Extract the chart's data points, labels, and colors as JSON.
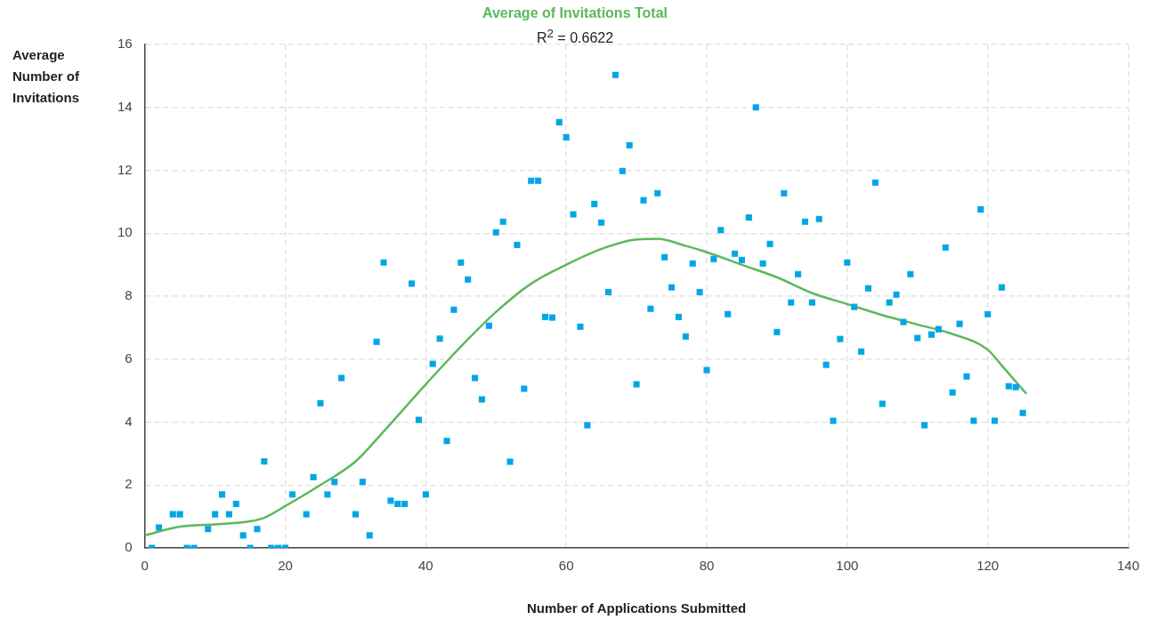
{
  "chart_data": {
    "type": "scatter",
    "title": "Average of Invitations Total",
    "subtitle": "R$^{2}$ = 0.6622",
    "xlabel": "Number of Applications Submitted",
    "ylabel": "Average Number of Invitations",
    "xlim": [
      0,
      140
    ],
    "xticks": [
      0,
      20,
      40,
      60,
      80,
      100,
      120,
      140
    ],
    "ylim": [
      0,
      16
    ],
    "yticks": [
      0,
      2,
      4,
      6,
      8,
      10,
      12,
      14,
      16
    ],
    "grid": true,
    "legend": false,
    "marker": "square",
    "series": [
      {
        "color": "#00a6e6",
        "x": [
          1,
          2,
          4,
          5,
          6,
          7,
          9,
          10,
          11,
          12,
          13,
          14,
          15,
          16,
          17,
          18,
          19,
          20,
          21,
          23,
          24,
          25,
          26,
          27,
          28,
          30,
          31,
          32,
          33,
          34,
          35,
          36,
          37,
          38,
          39,
          40,
          41,
          42,
          43,
          44,
          45,
          46,
          47,
          48,
          49,
          50,
          51,
          52,
          53,
          54,
          55,
          56,
          57,
          58,
          59,
          60,
          61,
          62,
          63,
          64,
          65,
          66,
          67,
          68,
          69,
          70,
          71,
          72,
          73,
          74,
          75,
          76,
          77,
          78,
          79,
          80,
          81,
          82,
          83,
          84,
          85,
          86,
          87,
          88,
          89,
          90,
          91,
          92,
          93,
          94,
          95,
          96,
          97,
          98,
          99,
          100,
          101,
          102,
          103,
          104,
          105,
          106,
          107,
          108,
          109,
          110,
          111,
          112,
          113,
          114,
          115,
          116,
          117,
          118,
          119,
          120,
          121,
          122,
          123,
          124,
          125
        ],
        "values": [
          0,
          0.65,
          1.07,
          1.07,
          0,
          0,
          0.6,
          1.07,
          1.7,
          1.07,
          1.4,
          0.4,
          0,
          0.6,
          2.75,
          0,
          0,
          0,
          1.7,
          1.07,
          2.25,
          4.6,
          1.7,
          2.1,
          5.4,
          1.07,
          2.1,
          0.4,
          6.55,
          9.07,
          1.5,
          1.4,
          1.4,
          8.4,
          4.07,
          1.7,
          5.85,
          6.65,
          3.4,
          7.57,
          9.07,
          8.53,
          5.4,
          4.72,
          7.06,
          10.03,
          10.37,
          2.74,
          9.63,
          5.06,
          11.67,
          11.67,
          7.34,
          7.32,
          13.53,
          13.05,
          10.6,
          7.03,
          3.9,
          10.93,
          10.34,
          8.13,
          15.03,
          11.98,
          12.8,
          5.2,
          11.05,
          7.6,
          11.27,
          9.24,
          8.28,
          7.34,
          6.72,
          9.04,
          8.13,
          5.65,
          9.18,
          10.1,
          7.43,
          9.35,
          9.15,
          10.5,
          14,
          9.04,
          9.66,
          6.86,
          11.27,
          7.8,
          8.7,
          10.37,
          7.8,
          10.45,
          5.82,
          4.04,
          6.64,
          9.07,
          7.66,
          6.24,
          8.25,
          11.61,
          4.58,
          7.8,
          8.05,
          7.18,
          8.7,
          6.67,
          3.9,
          6.78,
          6.95,
          9.55,
          4.94,
          7.12,
          5.45,
          4.04,
          10.76,
          7.43,
          4.04,
          8.28,
          5.14,
          5.11,
          4.29
        ]
      },
      {
        "type": "line",
        "color": "#5cb85c",
        "marker": "none",
        "x": [
          0,
          5,
          10,
          15,
          17,
          20,
          25,
          30,
          34,
          40,
          45,
          50,
          55,
          60,
          65,
          70,
          73,
          77,
          80,
          85,
          90,
          95,
          100,
          105,
          110,
          115,
          120,
          122,
          125.5
        ],
        "values": [
          0.4,
          0.68,
          0.75,
          0.85,
          0.96,
          1.33,
          2,
          2.75,
          3.7,
          5.2,
          6.4,
          7.5,
          8.4,
          9.0,
          9.5,
          9.8,
          9.82,
          9.6,
          9.4,
          9.0,
          8.6,
          8.1,
          7.75,
          7.4,
          7.1,
          6.8,
          6.3,
          5.8,
          4.9
        ]
      }
    ]
  }
}
